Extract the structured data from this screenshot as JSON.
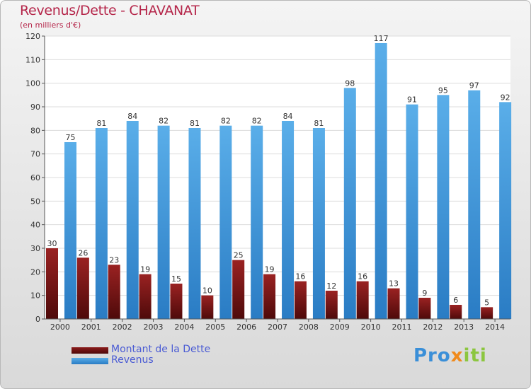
{
  "chart_data": {
    "type": "bar",
    "title": "Revenus/Dette - CHAVANAT",
    "subtitle": "(en milliers d'€)",
    "categories": [
      "2000",
      "2001",
      "2002",
      "2003",
      "2004",
      "2005",
      "2006",
      "2007",
      "2008",
      "2009",
      "2010",
      "2011",
      "2012",
      "2013",
      "2014"
    ],
    "series": [
      {
        "name": "Montant de la Dette",
        "color": "#8a1a1a",
        "values": [
          30,
          26,
          23,
          19,
          15,
          10,
          25,
          19,
          16,
          12,
          16,
          13,
          9,
          6,
          5
        ]
      },
      {
        "name": "Revenus",
        "color": "#3d97de",
        "values": [
          75,
          81,
          84,
          82,
          81,
          82,
          82,
          84,
          81,
          98,
          117,
          91,
          95,
          97,
          92
        ]
      }
    ],
    "ylim": [
      0,
      120
    ],
    "yticks": [
      0,
      10,
      20,
      30,
      40,
      50,
      60,
      70,
      80,
      90,
      100,
      110,
      120
    ],
    "grid": true,
    "legend": "bottom-left"
  },
  "legend": {
    "debt_label": "Montant de la Dette",
    "revenue_label": "Revenus"
  },
  "logo": {
    "text": "Proxiti",
    "parts": [
      "Pro",
      "x",
      "iti"
    ]
  }
}
